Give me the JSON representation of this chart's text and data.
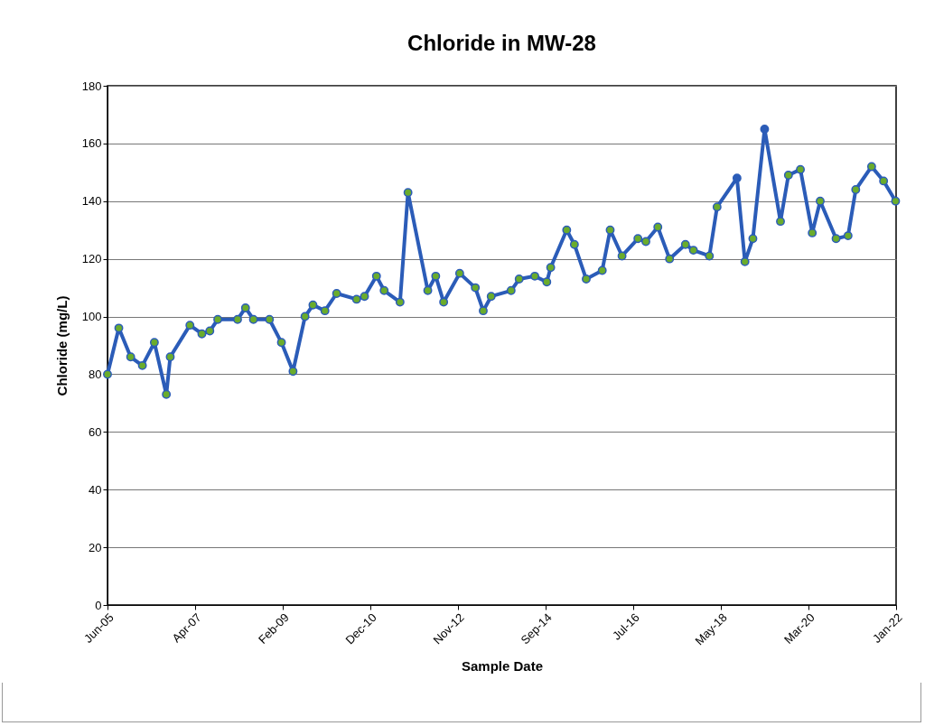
{
  "chart_data": {
    "type": "line",
    "title": "Chloride in MW-28",
    "xlabel": "Sample Date",
    "ylabel": "Chloride (mg/L)",
    "x": [
      "2005-06-20",
      "2005-09-15",
      "2005-12-15",
      "2006-03-15",
      "2006-06-15",
      "2006-09-15",
      "2006-10-15",
      "2007-03-15",
      "2007-06-15",
      "2007-08-15",
      "2007-10-15",
      "2008-03-15",
      "2008-05-15",
      "2008-07-15",
      "2008-11-15",
      "2009-02-15",
      "2009-05-15",
      "2009-08-15",
      "2009-10-15",
      "2010-01-15",
      "2010-04-15",
      "2010-09-15",
      "2010-11-15",
      "2011-02-15",
      "2011-04-15",
      "2011-08-15",
      "2011-10-15",
      "2012-03-15",
      "2012-05-15",
      "2012-07-15",
      "2012-11-15",
      "2013-03-15",
      "2013-05-15",
      "2013-07-15",
      "2013-12-15",
      "2014-02-15",
      "2014-06-15",
      "2014-09-15",
      "2014-10-15",
      "2015-02-15",
      "2015-04-15",
      "2015-07-15",
      "2015-11-15",
      "2016-01-15",
      "2016-04-15",
      "2016-08-15",
      "2016-10-15",
      "2017-01-15",
      "2017-04-15",
      "2017-08-15",
      "2017-10-15",
      "2018-02-15",
      "2018-04-15",
      "2018-09-15",
      "2018-11-15",
      "2019-01-15",
      "2019-04-15",
      "2019-08-15",
      "2019-10-15",
      "2020-01-15",
      "2020-04-15",
      "2020-06-15",
      "2020-10-15",
      "2021-01-15",
      "2021-03-15",
      "2021-07-15",
      "2021-10-15",
      "2022-01-15"
    ],
    "series": [
      {
        "color": "#2b5cb8",
        "colors": [
          "#6aac2c",
          "#6aac2c",
          "#6aac2c",
          "#6aac2c",
          "#6aac2c",
          "#6aac2c",
          "#6aac2c",
          "#6aac2c",
          "#6aac2c",
          "#6aac2c",
          "#6aac2c",
          "#6aac2c",
          "#6aac2c",
          "#6aac2c",
          "#6aac2c",
          "#6aac2c",
          "#6aac2c",
          "#6aac2c",
          "#6aac2c",
          "#6aac2c",
          "#6aac2c",
          "#6aac2c",
          "#6aac2c",
          "#6aac2c",
          "#6aac2c",
          "#6aac2c",
          "#6aac2c",
          "#6aac2c",
          "#6aac2c",
          "#6aac2c",
          "#6aac2c",
          "#6aac2c",
          "#6aac2c",
          "#6aac2c",
          "#6aac2c",
          "#6aac2c",
          "#6aac2c",
          "#6aac2c",
          "#6aac2c",
          "#6aac2c",
          "#6aac2c",
          "#6aac2c",
          "#6aac2c",
          "#6aac2c",
          "#6aac2c",
          "#6aac2c",
          "#6aac2c",
          "#6aac2c",
          "#6aac2c",
          "#6aac2c",
          "#6aac2c",
          "#6aac2c",
          "#6aac2c",
          "#2b5cb8",
          "#6aac2c",
          "#6aac2c",
          "#2b5cb8",
          "#6aac2c",
          "#6aac2c",
          "#6aac2c",
          "#6aac2c",
          "#6aac2c",
          "#6aac2c",
          "#6aac2c",
          "#6aac2c",
          "#6aac2c",
          "#6aac2c",
          "#6aac2c"
        ],
        "values": [
          80,
          96,
          86,
          83,
          91,
          73,
          86,
          97,
          94,
          95,
          99,
          99,
          103,
          99,
          99,
          91,
          81,
          100,
          104,
          102,
          108,
          106,
          107,
          114,
          109,
          105,
          143,
          109,
          114,
          105,
          115,
          110,
          102,
          107,
          109,
          113,
          114,
          112,
          117,
          130,
          125,
          113,
          116,
          130,
          121,
          127,
          126,
          131,
          120,
          125,
          123,
          121,
          138,
          148,
          119,
          127,
          165,
          133,
          149,
          151,
          129,
          140,
          127,
          128,
          144,
          152,
          147,
          140
        ]
      }
    ],
    "xlim": [
      "2005-06-20",
      "2022-01-19"
    ],
    "xticks": [
      {
        "value": "2005-06-20",
        "label": "Jun-05"
      },
      {
        "value": "2007-04-24",
        "label": "Apr-07"
      },
      {
        "value": "2009-02-25",
        "label": "Feb-09"
      },
      {
        "value": "2010-12-30",
        "label": "Dec-10"
      },
      {
        "value": "2012-11-02",
        "label": "Nov-12"
      },
      {
        "value": "2014-09-06",
        "label": "Sep-14"
      },
      {
        "value": "2016-07-10",
        "label": "Jul-16"
      },
      {
        "value": "2018-05-14",
        "label": "May-18"
      },
      {
        "value": "2020-03-17",
        "label": "Mar-20"
      },
      {
        "value": "2022-01-19",
        "label": "Jan-22"
      }
    ],
    "ylim": [
      0,
      180
    ],
    "yticks": [
      0,
      20,
      40,
      60,
      80,
      100,
      120,
      140,
      160,
      180
    ],
    "grid": "y",
    "marker": "circle",
    "line_style": "solid"
  }
}
